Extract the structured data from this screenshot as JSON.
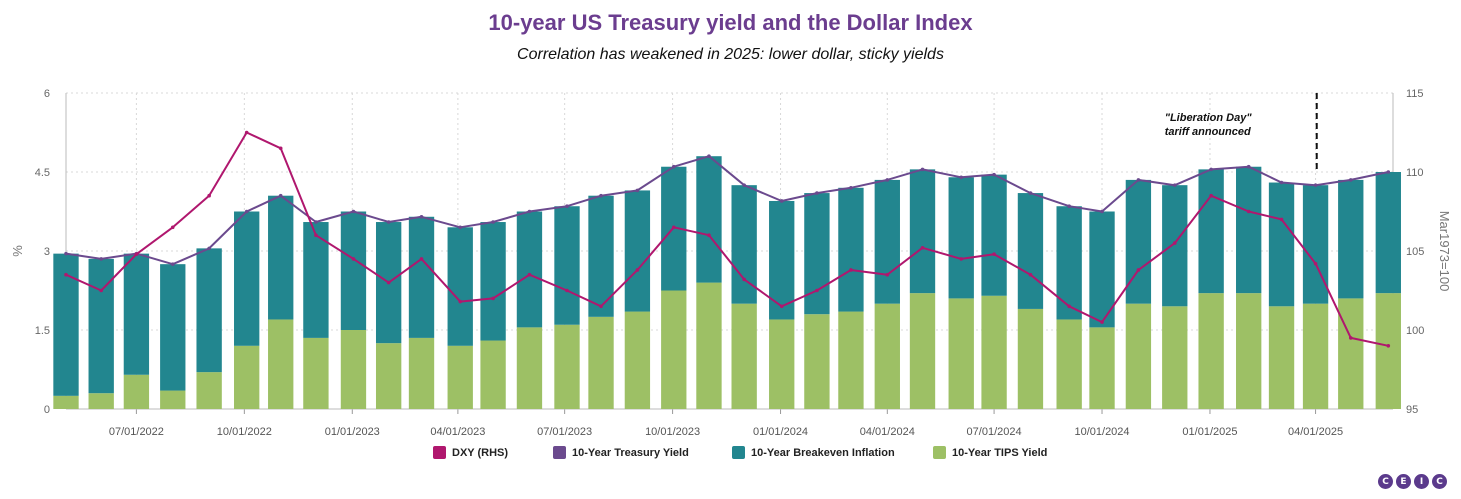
{
  "title": "10-year US Treasury yield and the Dollar Index",
  "subtitle": "Correlation has weakened in 2025: lower dollar, sticky yields",
  "legend": [
    {
      "label": "DXY (RHS)",
      "color": "#b0176e"
    },
    {
      "label": "10-Year Treasury Yield",
      "color": "#6b4a8e"
    },
    {
      "label": "10-Year Breakeven Inflation",
      "color": "#22868f"
    },
    {
      "label": "10-Year TIPS Yield",
      "color": "#9dc065"
    }
  ],
  "annotation": {
    "line1": "\"Liberation Day\"",
    "line2": "tariff announced"
  },
  "logo": [
    "C",
    "E",
    "I",
    "C"
  ],
  "chart_data": {
    "type": "bar",
    "xlabel": "",
    "ylabel": "%",
    "y2label": "Mar1973=100",
    "ylim": [
      0,
      6
    ],
    "y2lim": [
      95,
      115
    ],
    "yticks": [
      "0",
      "1.5",
      "3",
      "4.5",
      "6"
    ],
    "y2ticks": [
      "95",
      "100",
      "105",
      "110",
      "115"
    ],
    "xticks": [
      "07/01/2022",
      "10/01/2022",
      "01/01/2023",
      "04/01/2023",
      "07/01/2023",
      "10/01/2023",
      "01/01/2024",
      "04/01/2024",
      "07/01/2024",
      "10/01/2024",
      "01/01/2025",
      "04/01/2025"
    ],
    "grid": true,
    "legend_position": "bottom",
    "annotation_date": "04/02/2025",
    "dates": [
      "05/02/2022",
      "06/01/2022",
      "07/01/2022",
      "08/01/2022",
      "09/01/2022",
      "10/03/2022",
      "11/01/2022",
      "12/01/2022",
      "01/02/2023",
      "02/01/2023",
      "03/01/2023",
      "04/03/2023",
      "05/01/2023",
      "06/01/2023",
      "07/03/2023",
      "08/01/2023",
      "09/01/2023",
      "10/02/2023",
      "11/01/2023",
      "12/01/2023",
      "01/02/2024",
      "02/01/2024",
      "03/01/2024",
      "04/01/2024",
      "05/01/2024",
      "06/03/2024",
      "07/01/2024",
      "08/01/2024",
      "09/03/2024",
      "10/01/2024",
      "11/01/2024",
      "12/02/2024",
      "01/02/2025",
      "02/03/2025",
      "03/03/2025",
      "04/01/2025",
      "05/01/2025",
      "06/02/2025"
    ],
    "series": [
      {
        "name": "10-Year Treasury Yield",
        "axis": "left",
        "values": [
          2.95,
          2.85,
          2.95,
          2.75,
          3.05,
          3.75,
          4.05,
          3.55,
          3.75,
          3.55,
          3.65,
          3.45,
          3.55,
          3.75,
          3.85,
          4.05,
          4.15,
          4.6,
          4.8,
          4.25,
          3.95,
          4.1,
          4.2,
          4.35,
          4.55,
          4.4,
          4.45,
          4.1,
          3.85,
          3.75,
          4.35,
          4.25,
          4.55,
          4.6,
          4.3,
          4.25,
          4.35,
          4.5
        ]
      },
      {
        "name": "10-Year Breakeven Inflation",
        "axis": "left",
        "values": [
          2.7,
          2.55,
          2.3,
          2.4,
          2.35,
          2.55,
          2.35,
          2.2,
          2.25,
          2.3,
          2.3,
          2.25,
          2.25,
          2.2,
          2.25,
          2.3,
          2.3,
          2.35,
          2.4,
          2.25,
          2.25,
          2.3,
          2.35,
          2.35,
          2.35,
          2.3,
          2.3,
          2.2,
          2.15,
          2.2,
          2.35,
          2.3,
          2.35,
          2.4,
          2.35,
          2.25,
          2.25,
          2.3
        ]
      },
      {
        "name": "10-Year TIPS Yield",
        "axis": "left",
        "values": [
          0.25,
          0.3,
          0.65,
          0.35,
          0.7,
          1.2,
          1.7,
          1.35,
          1.5,
          1.25,
          1.35,
          1.2,
          1.3,
          1.55,
          1.6,
          1.75,
          1.85,
          2.25,
          2.4,
          2.0,
          1.7,
          1.8,
          1.85,
          2.0,
          2.2,
          2.1,
          2.15,
          1.9,
          1.7,
          1.55,
          2.0,
          1.95,
          2.2,
          2.2,
          1.95,
          2.0,
          2.1,
          2.2
        ]
      },
      {
        "name": "DXY (RHS)",
        "axis": "right",
        "values": [
          103.5,
          102.5,
          104.8,
          106.5,
          108.5,
          112.5,
          111.5,
          106.0,
          104.5,
          103.0,
          104.5,
          101.8,
          102.0,
          103.5,
          102.5,
          101.5,
          103.8,
          106.5,
          106.0,
          103.2,
          101.5,
          102.5,
          103.8,
          103.5,
          105.2,
          104.5,
          104.8,
          103.5,
          101.5,
          100.5,
          103.8,
          105.5,
          108.5,
          107.5,
          107.0,
          104.2,
          99.5,
          99.0
        ]
      }
    ]
  }
}
